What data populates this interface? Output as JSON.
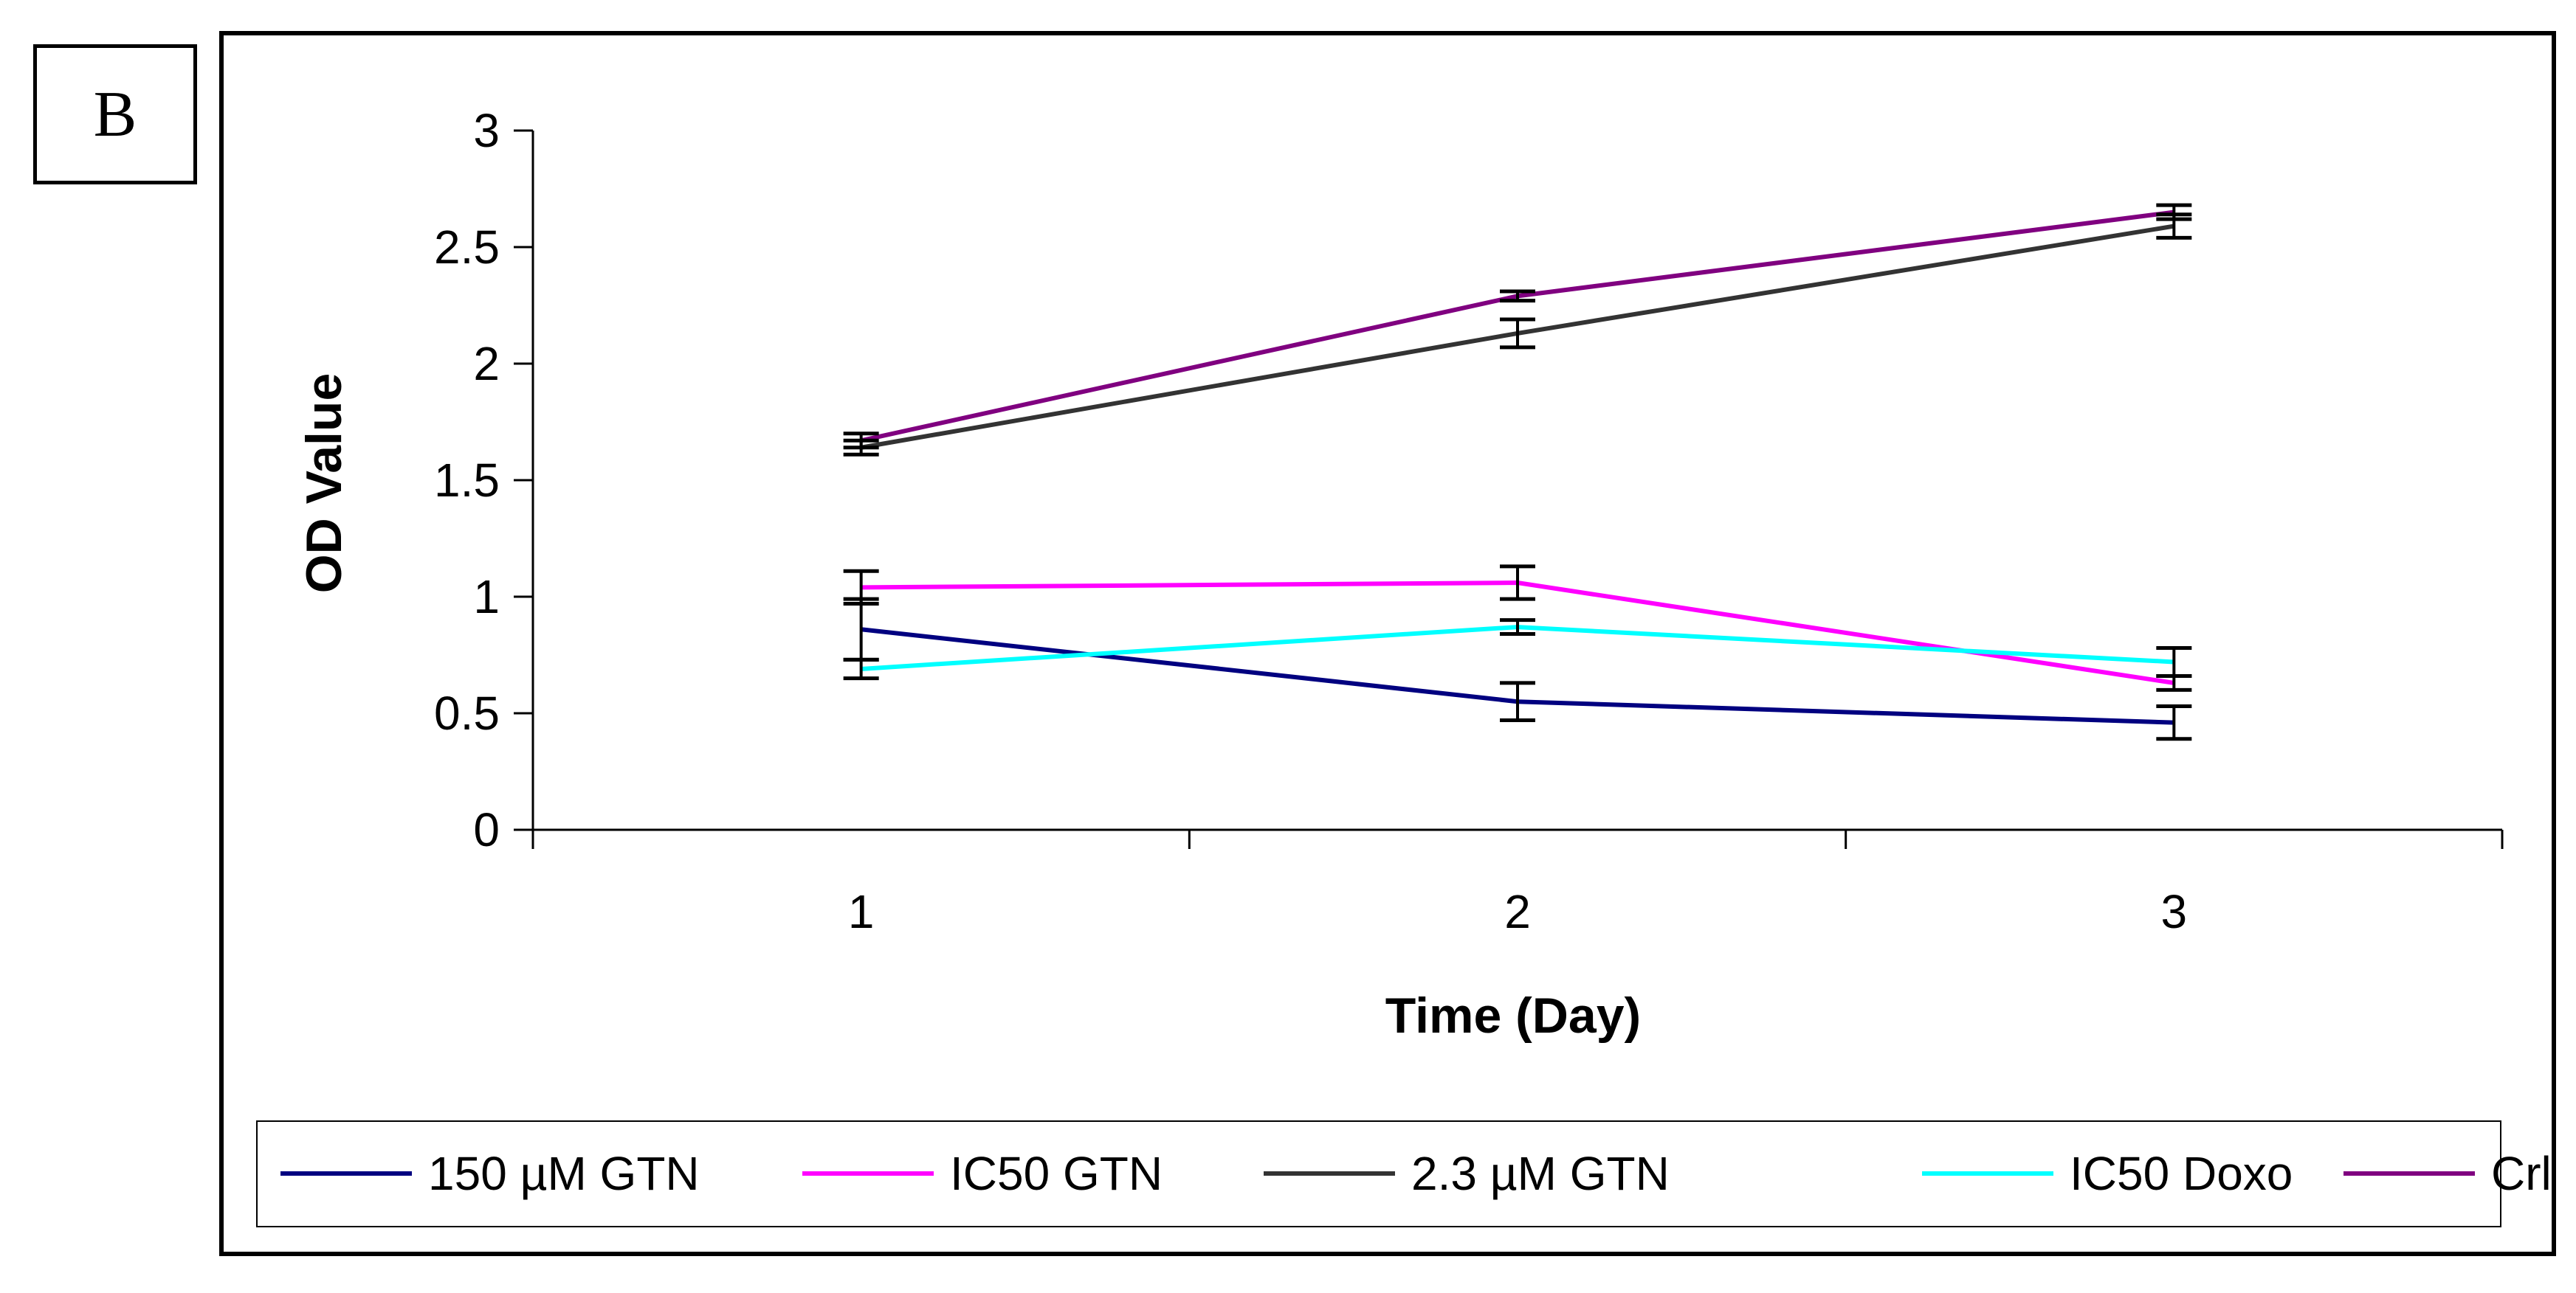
{
  "panel_label": "B",
  "chart_data": {
    "type": "line",
    "title": "",
    "xlabel": "Time (Day)",
    "ylabel": "OD Value",
    "x": [
      1,
      2,
      3
    ],
    "x_tick_labels": [
      "1",
      "2",
      "3"
    ],
    "ylim": [
      0,
      3
    ],
    "y_ticks": [
      0,
      0.5,
      1,
      1.5,
      2,
      2.5,
      3
    ],
    "y_tick_labels": [
      "0",
      "0.5",
      "1",
      "1.5",
      "2",
      "2.5",
      "3"
    ],
    "grid": false,
    "legend_position": "bottom",
    "series": [
      {
        "name": "150 µM GTN",
        "color": "#000080",
        "values": [
          0.86,
          0.55,
          0.46
        ],
        "errors": [
          0.13,
          0.08,
          0.07
        ]
      },
      {
        "name": "IC50 GTN",
        "color": "#ff00ff",
        "values": [
          1.04,
          1.06,
          0.63
        ],
        "errors": [
          0.07,
          0.07,
          0.03
        ]
      },
      {
        "name": "2.3 µM GTN",
        "color": "#333333",
        "values": [
          1.64,
          2.13,
          2.59
        ],
        "errors": [
          0.03,
          0.06,
          0.05
        ]
      },
      {
        "name": "IC50 Doxo",
        "color": "#00ffff",
        "values": [
          0.69,
          0.87,
          0.72
        ],
        "errors": [
          0.04,
          0.03,
          0.06
        ]
      },
      {
        "name": "Crl",
        "color": "#800080",
        "values": [
          1.67,
          2.29,
          2.65
        ],
        "errors": [
          0.03,
          0.02,
          0.03
        ]
      }
    ]
  }
}
